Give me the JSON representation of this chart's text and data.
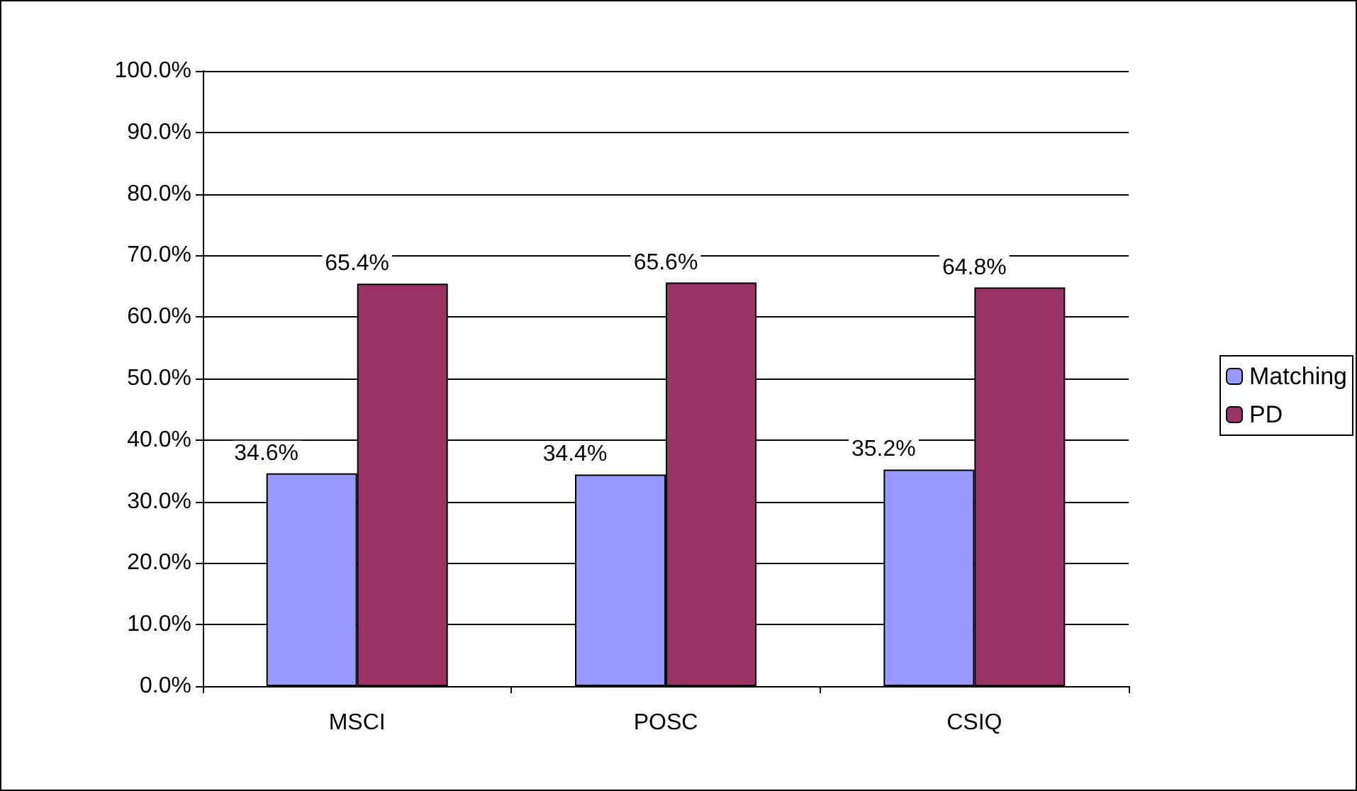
{
  "chart_data": {
    "type": "bar",
    "categories": [
      "MSCI",
      "POSC",
      "CSIQ"
    ],
    "series": [
      {
        "name": "Matching",
        "color": "#9999ff",
        "values": [
          34.6,
          34.4,
          35.2
        ],
        "value_labels": [
          "34.6%",
          "34.4%",
          "35.2%"
        ]
      },
      {
        "name": "PD",
        "color": "#993366",
        "values": [
          65.4,
          65.6,
          64.8
        ],
        "value_labels": [
          "65.4%",
          "65.6%",
          "64.8%"
        ]
      }
    ],
    "ylim": [
      0,
      100
    ],
    "yticks": [
      {
        "value": 0,
        "label": "0.0%"
      },
      {
        "value": 10,
        "label": "10.0%"
      },
      {
        "value": 20,
        "label": "20.0%"
      },
      {
        "value": 30,
        "label": "30.0%"
      },
      {
        "value": 40,
        "label": "40.0%"
      },
      {
        "value": 50,
        "label": "50.0%"
      },
      {
        "value": 60,
        "label": "60.0%"
      },
      {
        "value": 70,
        "label": "70.0%"
      },
      {
        "value": 80,
        "label": "80.0%"
      },
      {
        "value": 90,
        "label": "90.0%"
      },
      {
        "value": 100,
        "label": "100.0%"
      }
    ],
    "grid": "y",
    "legend": "right"
  }
}
